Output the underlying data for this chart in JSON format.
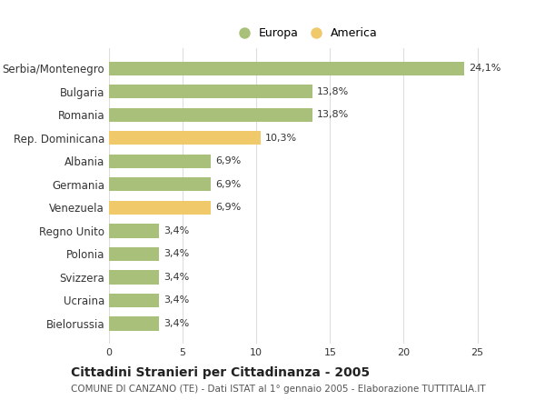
{
  "categories": [
    "Serbia/Montenegro",
    "Bulgaria",
    "Romania",
    "Rep. Dominicana",
    "Albania",
    "Germania",
    "Venezuela",
    "Regno Unito",
    "Polonia",
    "Svizzera",
    "Ucraina",
    "Bielorussia"
  ],
  "values": [
    24.1,
    13.8,
    13.8,
    10.3,
    6.9,
    6.9,
    6.9,
    3.4,
    3.4,
    3.4,
    3.4,
    3.4
  ],
  "labels": [
    "24,1%",
    "13,8%",
    "13,8%",
    "10,3%",
    "6,9%",
    "6,9%",
    "6,9%",
    "3,4%",
    "3,4%",
    "3,4%",
    "3,4%",
    "3,4%"
  ],
  "continents": [
    "Europa",
    "Europa",
    "Europa",
    "America",
    "Europa",
    "Europa",
    "America",
    "Europa",
    "Europa",
    "Europa",
    "Europa",
    "Europa"
  ],
  "color_europa": "#a8c07a",
  "color_america": "#f0c96a",
  "background_color": "#ffffff",
  "grid_color": "#dddddd",
  "title": "Cittadini Stranieri per Cittadinanza - 2005",
  "subtitle": "COMUNE DI CANZANO (TE) - Dati ISTAT al 1° gennaio 2005 - Elaborazione TUTTITALIA.IT",
  "legend_europa": "Europa",
  "legend_america": "America",
  "xlim": [
    0,
    27
  ],
  "xticks": [
    0,
    5,
    10,
    15,
    20,
    25
  ]
}
